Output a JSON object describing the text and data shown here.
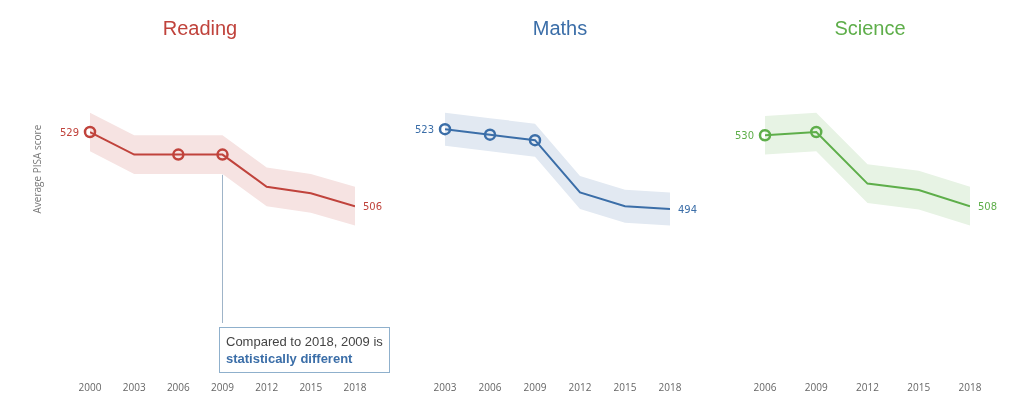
{
  "chart_data": [
    {
      "type": "line",
      "title": "Reading",
      "ylabel": "Average PISA score",
      "x": [
        2000,
        2003,
        2006,
        2009,
        2012,
        2015,
        2018
      ],
      "xlim": [
        2000,
        2018
      ],
      "xticks": [
        2000,
        2003,
        2006,
        2009,
        2012,
        2015,
        2018
      ],
      "tick_labels": "x",
      "grid": false,
      "series": [
        {
          "color": "#c0433c",
          "values": [
            529,
            522,
            522,
            522,
            512,
            510,
            506
          ],
          "lower": [
            523,
            516,
            516,
            516,
            506,
            504,
            500
          ],
          "upper": [
            535,
            528,
            528,
            528,
            518,
            516,
            512
          ],
          "value_labels": [
            "529",
            null,
            null,
            null,
            null,
            null,
            "506"
          ],
          "marker": "none"
        },
        {
          "type": "scatter",
          "color": "#c0433c",
          "x": [
            2000,
            2006,
            2009
          ],
          "values": [
            529,
            522,
            522
          ],
          "marker": "circle"
        }
      ],
      "ref_lines": [
        {
          "axis": "x",
          "value": 2009,
          "color": "#9fb4c8"
        }
      ],
      "annotations": [
        "Compared to 2018, 2009 is",
        "statistically different"
      ]
    },
    {
      "type": "line",
      "title": "Maths",
      "x": [
        2003,
        2006,
        2009,
        2012,
        2015,
        2018
      ],
      "xlim": [
        2003,
        2018
      ],
      "xticks": [
        2003,
        2006,
        2009,
        2012,
        2015,
        2018
      ],
      "tick_labels": "x",
      "grid": false,
      "series": [
        {
          "color": "#3b6ea8",
          "values": [
            523,
            521,
            519,
            500,
            495,
            494
          ],
          "lower": [
            517,
            515,
            513,
            494,
            489,
            488
          ],
          "upper": [
            529,
            527,
            525,
            506,
            501,
            500
          ],
          "value_labels": [
            "523",
            null,
            null,
            null,
            null,
            "494"
          ],
          "marker": "none"
        },
        {
          "type": "scatter",
          "color": "#3b6ea8",
          "x": [
            2003,
            2006,
            2009
          ],
          "values": [
            523,
            521,
            519
          ],
          "marker": "circle"
        }
      ]
    },
    {
      "type": "line",
      "title": "Science",
      "x": [
        2006,
        2009,
        2012,
        2015,
        2018
      ],
      "xlim": [
        2006,
        2018
      ],
      "xticks": [
        2006,
        2009,
        2012,
        2015,
        2018
      ],
      "tick_labels": "x",
      "grid": false,
      "series": [
        {
          "color": "#5eae4a",
          "values": [
            530,
            531,
            515,
            513,
            508
          ],
          "lower": [
            524,
            525,
            509,
            507,
            502
          ],
          "upper": [
            536,
            537,
            521,
            519,
            514
          ],
          "value_labels": [
            "530",
            null,
            null,
            null,
            "508"
          ],
          "marker": "none"
        },
        {
          "type": "scatter",
          "color": "#5eae4a",
          "x": [
            2006,
            2009
          ],
          "values": [
            530,
            531
          ],
          "marker": "circle"
        }
      ]
    }
  ]
}
